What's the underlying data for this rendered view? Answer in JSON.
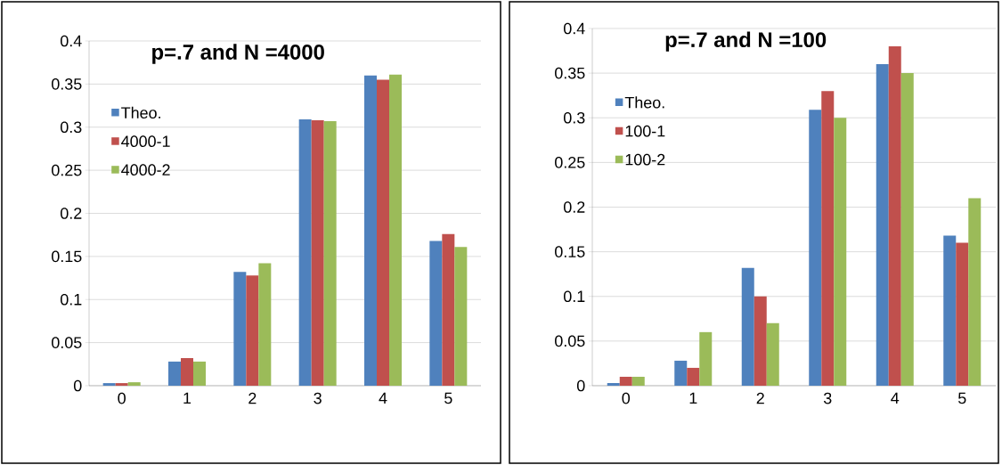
{
  "chart_data": [
    {
      "type": "bar",
      "title": "p=.7 and N =4000",
      "categories": [
        "0",
        "1",
        "2",
        "3",
        "4",
        "5"
      ],
      "series": [
        {
          "name": "Theo.",
          "color": "#4f81bd",
          "values": [
            0.003,
            0.028,
            0.132,
            0.309,
            0.36,
            0.168
          ]
        },
        {
          "name": "4000-1",
          "color": "#c0504d",
          "values": [
            0.003,
            0.032,
            0.128,
            0.308,
            0.355,
            0.176
          ]
        },
        {
          "name": "4000-2",
          "color": "#9bbb59",
          "values": [
            0.004,
            0.028,
            0.142,
            0.307,
            0.361,
            0.161
          ]
        }
      ],
      "ylim": [
        0,
        0.4
      ],
      "yticks": [
        0,
        0.05,
        0.1,
        0.15,
        0.2,
        0.25,
        0.3,
        0.35,
        0.4
      ],
      "grid": "y",
      "legend": "top left"
    },
    {
      "type": "bar",
      "title": "p=.7 and N =100",
      "categories": [
        "0",
        "1",
        "2",
        "3",
        "4",
        "5"
      ],
      "series": [
        {
          "name": "Theo.",
          "color": "#4f81bd",
          "values": [
            0.003,
            0.028,
            0.132,
            0.309,
            0.36,
            0.168
          ]
        },
        {
          "name": "100-1",
          "color": "#c0504d",
          "values": [
            0.01,
            0.02,
            0.1,
            0.33,
            0.38,
            0.16
          ]
        },
        {
          "name": "100-2",
          "color": "#9bbb59",
          "values": [
            0.01,
            0.06,
            0.07,
            0.3,
            0.35,
            0.21
          ]
        }
      ],
      "ylim": [
        0,
        0.4
      ],
      "yticks": [
        0,
        0.05,
        0.1,
        0.15,
        0.2,
        0.25,
        0.3,
        0.35,
        0.4
      ],
      "grid": "y",
      "legend": "top left"
    }
  ]
}
